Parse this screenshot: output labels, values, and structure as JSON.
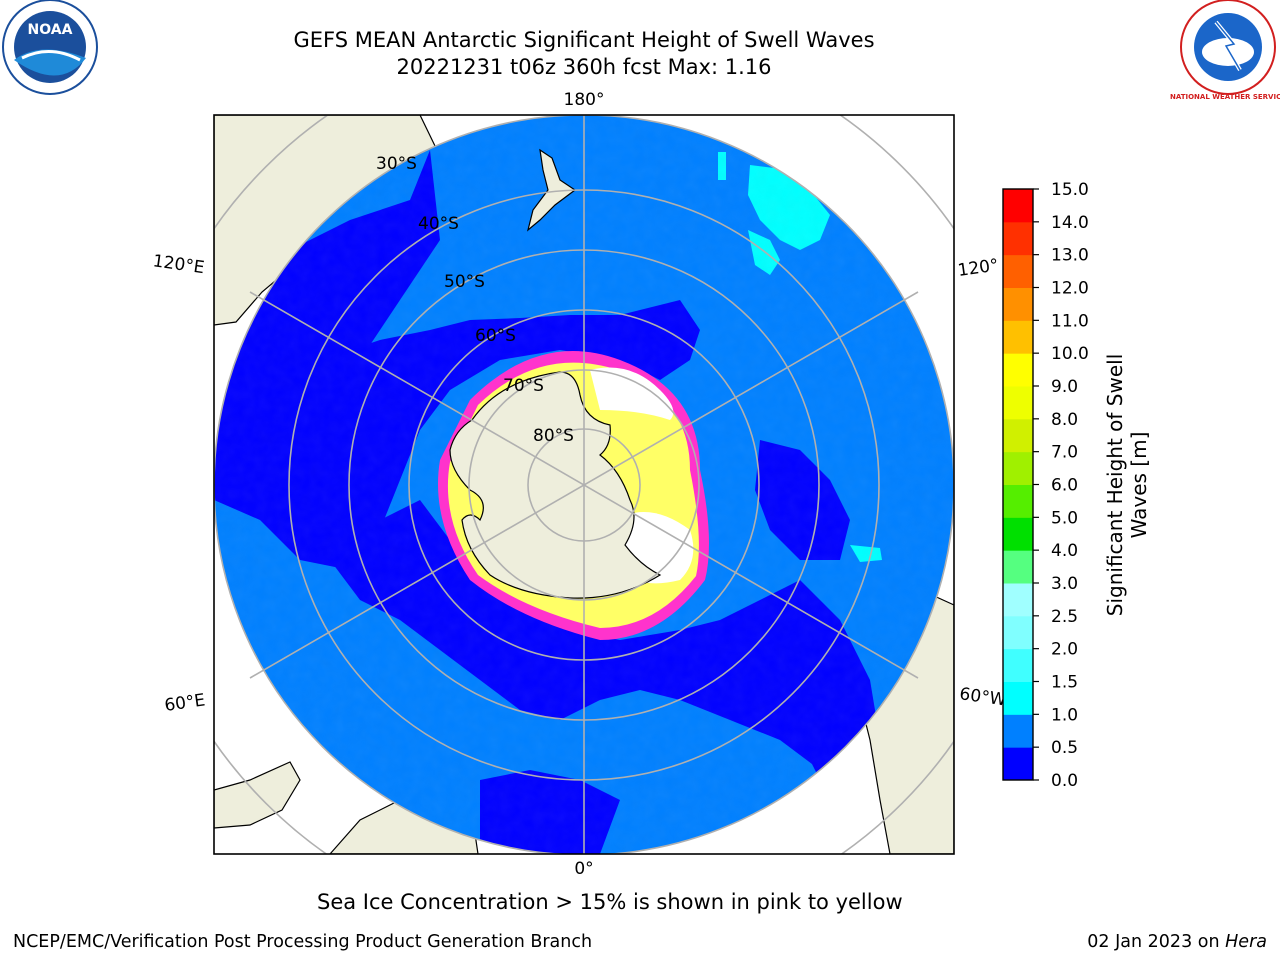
{
  "header": {
    "title_line1": "GEFS MEAN Antarctic Significant Height of Swell Waves",
    "title_line2": "20221231 t06z 360h fcst   Max: 1.16"
  },
  "logos": {
    "left": "NOAA",
    "right": "NATIONAL WEATHER SERVICE"
  },
  "map": {
    "longitude_labels": {
      "top": "180°",
      "bottom": "0°",
      "upper_left": "120°E",
      "upper_right": "120°",
      "lower_left": "60°E",
      "lower_right": "60°W"
    },
    "latitude_labels": [
      "30°S",
      "40°S",
      "50°S",
      "60°S",
      "70°S",
      "80°S"
    ],
    "colors": {
      "land": "#eeeedc",
      "ocean_low": "#0080ff",
      "ocean_lowest": "#0000ff",
      "swell_cyan": "#00ffff",
      "sea_ice_pink": "#ff33cc",
      "sea_ice_yellow": "#ffff66",
      "grid": "#b0b0b0"
    }
  },
  "colorbar": {
    "title_line1": "Significant Height of Swell",
    "title_line2": "Waves [m]",
    "ticks": [
      "0.0",
      "0.5",
      "1.0",
      "1.5",
      "2.0",
      "2.5",
      "3.0",
      "4.0",
      "5.0",
      "6.0",
      "7.0",
      "8.0",
      "9.0",
      "10.0",
      "11.0",
      "12.0",
      "13.0",
      "14.0",
      "15.0"
    ],
    "colors": [
      "#0000ff",
      "#0080ff",
      "#00ffff",
      "#40ffff",
      "#80ffff",
      "#a0ffff",
      "#55ff80",
      "#00e000",
      "#55ee00",
      "#a0f000",
      "#d0f000",
      "#eeff00",
      "#ffff00",
      "#ffc000",
      "#ff9000",
      "#ff6000",
      "#ff3000",
      "#ff0000"
    ]
  },
  "caption": "Sea Ice Concentration > 15% is shown in pink to yellow",
  "footer": {
    "left": "NCEP/EMC/Verification Post Processing Product Generation Branch",
    "right_date": "02 Jan 2023 on ",
    "right_host": "Hera"
  }
}
